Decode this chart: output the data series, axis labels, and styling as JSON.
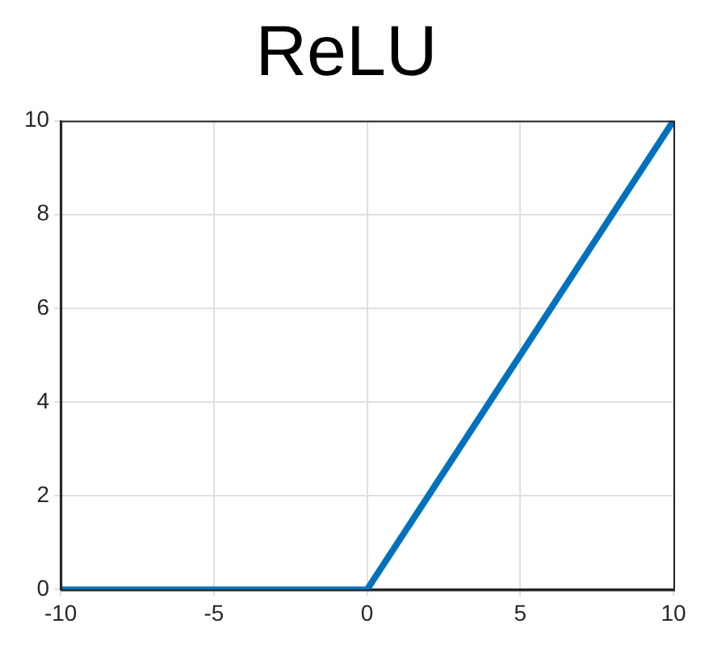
{
  "chart_data": {
    "type": "line",
    "title": "ReLU",
    "x": [
      -10,
      0,
      10
    ],
    "series": [
      {
        "color": "#0072bd",
        "values": [
          0,
          0,
          10
        ]
      }
    ],
    "xlim": [
      -10,
      10
    ],
    "xticks": [
      -10,
      -5,
      0,
      5,
      10
    ],
    "ylim": [
      0,
      10
    ],
    "yticks": [
      0,
      2,
      4,
      6,
      8,
      10
    ],
    "grid": true,
    "legend": false,
    "marker": "none",
    "line_style": "solid"
  }
}
